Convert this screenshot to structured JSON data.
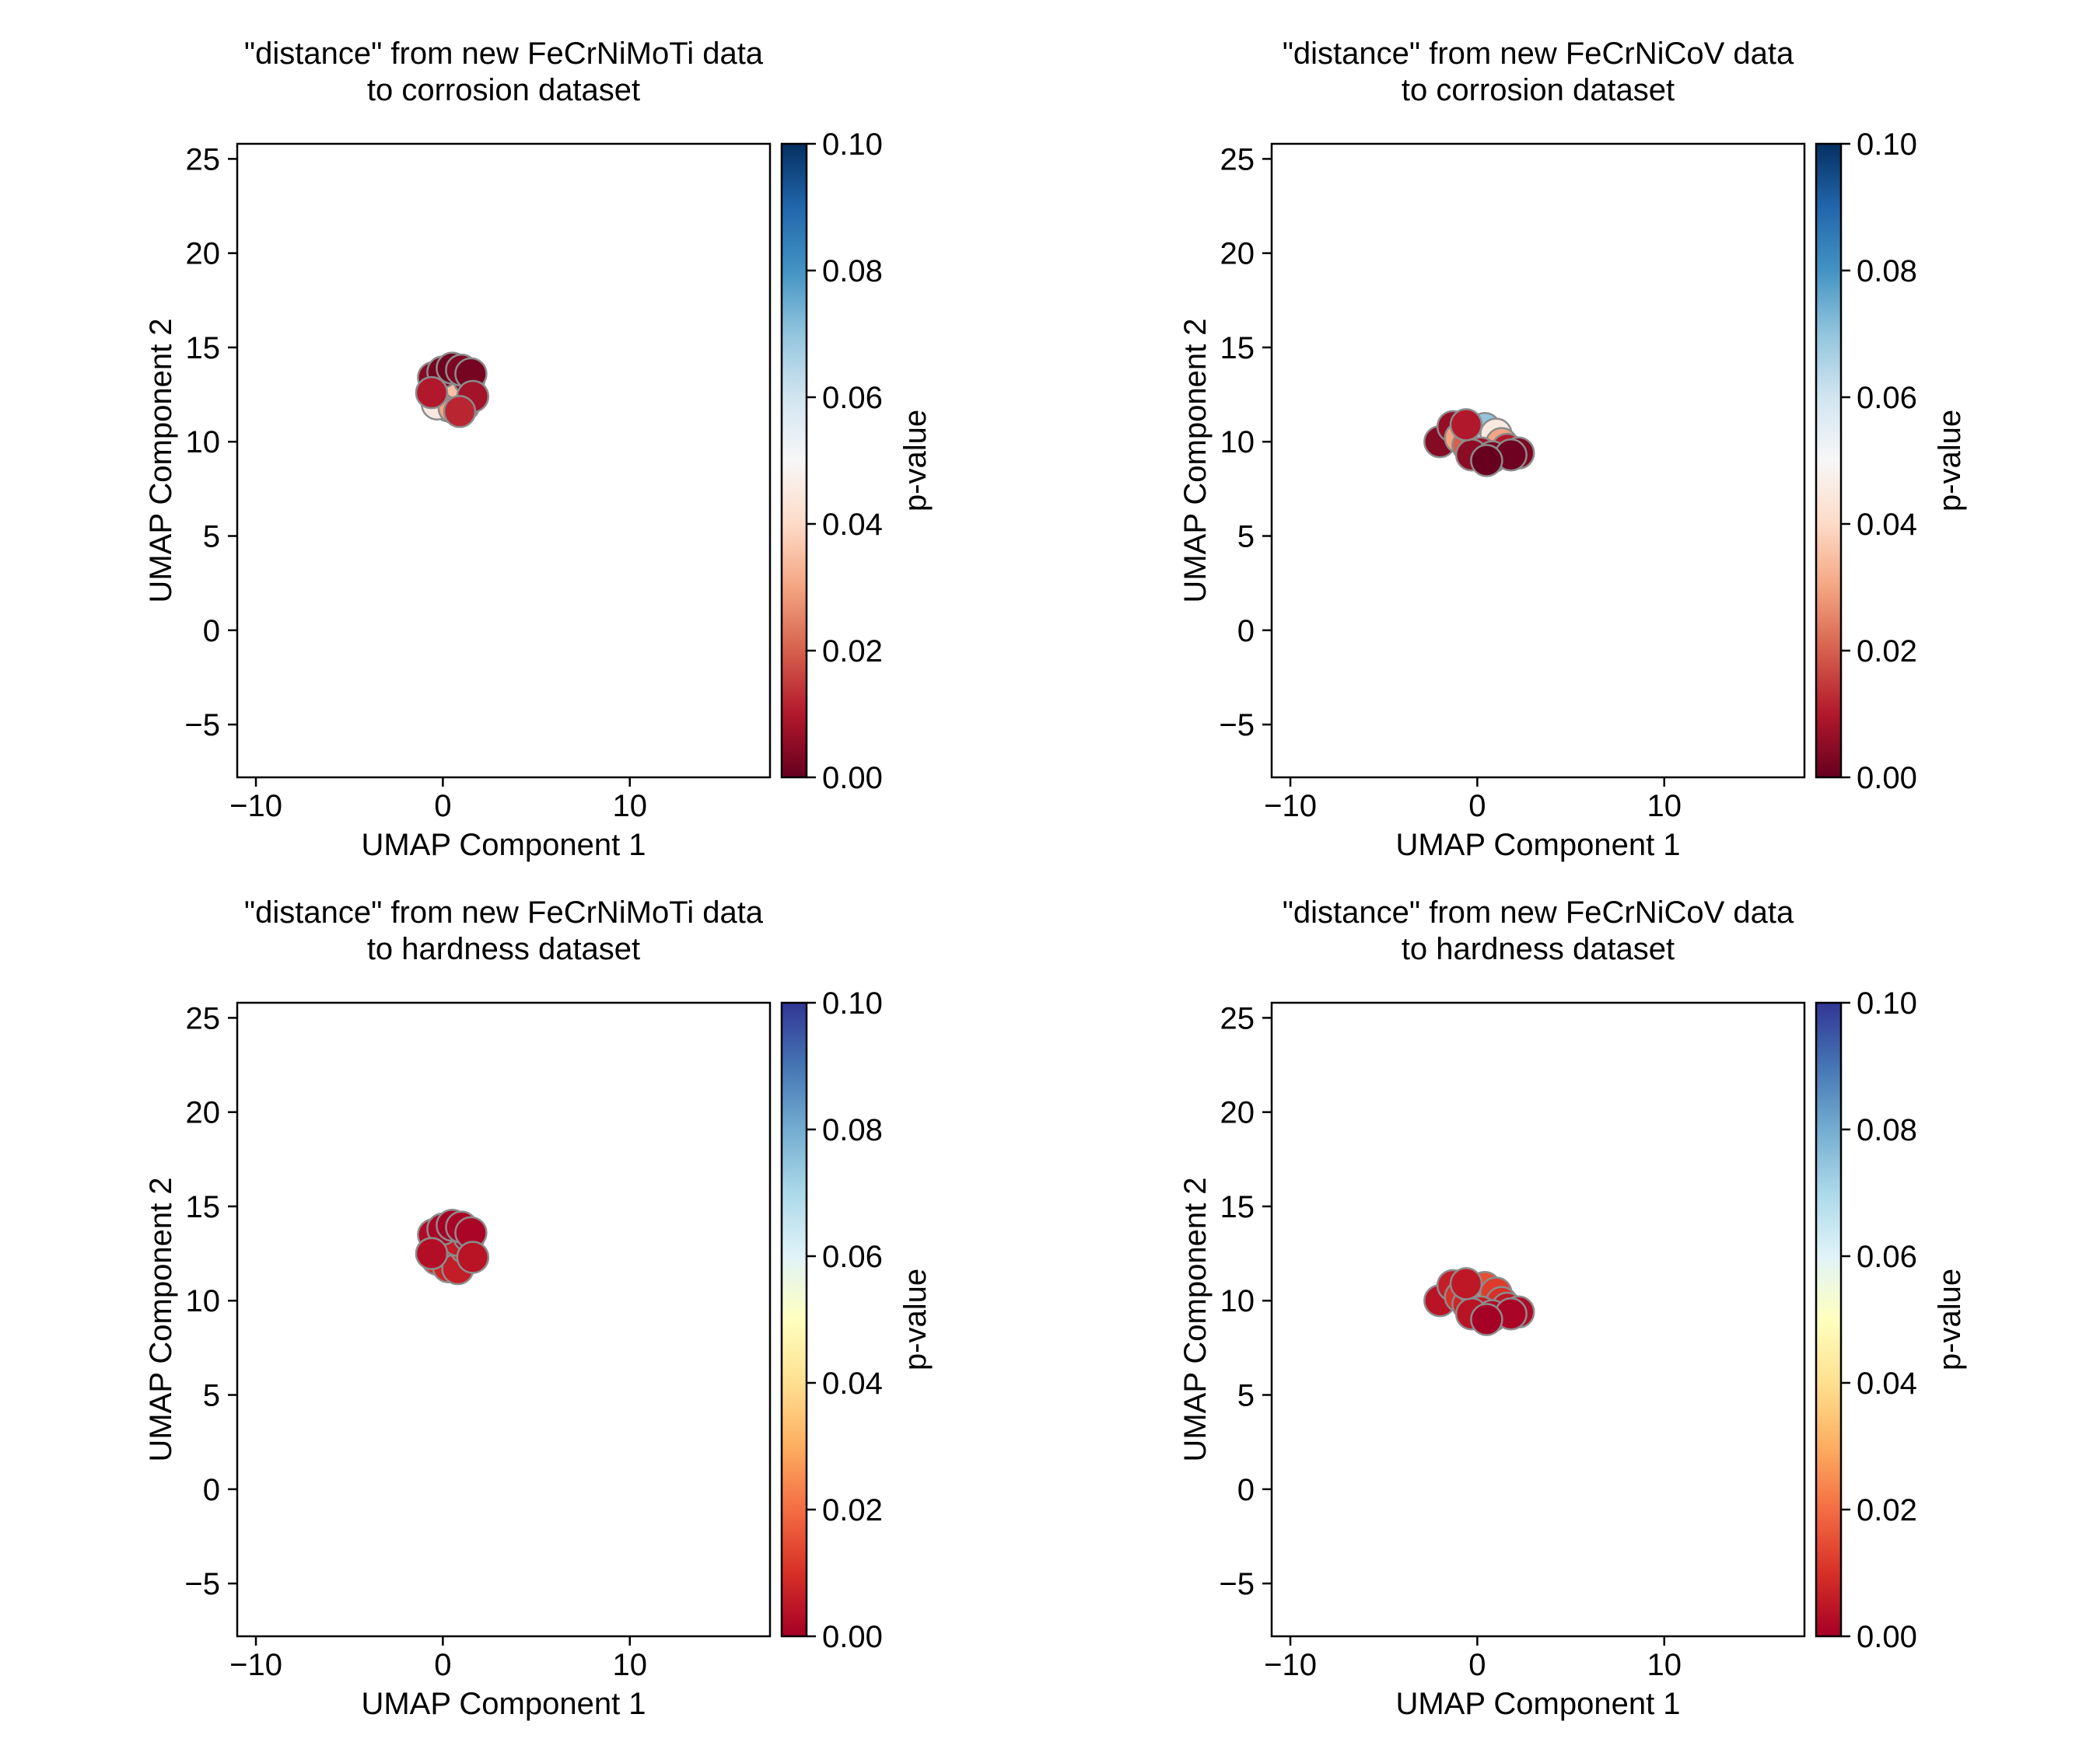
{
  "chart_data": [
    {
      "type": "scatter",
      "title": "\"distance\" from new FeCrNiMoTi data",
      "subtitle": "to corrosion dataset",
      "xlabel": "UMAP Component 1",
      "ylabel": "UMAP Component 2",
      "xlim": [
        -11,
        17.5
      ],
      "ylim": [
        -7.8,
        25.8
      ],
      "xticks": [
        -10,
        0,
        10
      ],
      "yticks": [
        -5,
        0,
        5,
        10,
        15,
        20,
        25
      ],
      "colorbar": {
        "label": "p-value",
        "range": [
          0.0,
          0.1
        ],
        "ticks": [
          "0.00",
          "0.02",
          "0.04",
          "0.06",
          "0.08",
          "0.10"
        ],
        "colormap": "RdBu"
      },
      "marker_edge_color": "#8c8c8c",
      "points": [
        {
          "x": -0.2,
          "y": 12.4,
          "v": 0.065
        },
        {
          "x": 0.1,
          "y": 12.7,
          "v": 0.09
        },
        {
          "x": 0.4,
          "y": 12.3,
          "v": 0.08
        },
        {
          "x": 0.7,
          "y": 12.6,
          "v": 0.07
        },
        {
          "x": 1.0,
          "y": 12.2,
          "v": 0.05
        },
        {
          "x": 0.3,
          "y": 11.9,
          "v": 0.06
        },
        {
          "x": -0.3,
          "y": 12.0,
          "v": 0.045
        },
        {
          "x": 0.6,
          "y": 11.8,
          "v": 0.03
        },
        {
          "x": 1.1,
          "y": 11.9,
          "v": 0.015
        },
        {
          "x": 1.3,
          "y": 12.7,
          "v": 0.02
        },
        {
          "x": -0.4,
          "y": 12.8,
          "v": 0.03
        },
        {
          "x": 0.2,
          "y": 13.1,
          "v": 0.025
        },
        {
          "x": 0.8,
          "y": 13.1,
          "v": 0.035
        },
        {
          "x": 1.4,
          "y": 13.3,
          "v": 0.005
        },
        {
          "x": -0.5,
          "y": 13.4,
          "v": 0.004
        },
        {
          "x": 0.0,
          "y": 13.7,
          "v": 0.002
        },
        {
          "x": 0.5,
          "y": 13.9,
          "v": 0.001
        },
        {
          "x": 1.0,
          "y": 13.8,
          "v": 0.003
        },
        {
          "x": 1.5,
          "y": 13.6,
          "v": 0.002
        },
        {
          "x": -0.6,
          "y": 12.6,
          "v": 0.01
        },
        {
          "x": 1.6,
          "y": 12.4,
          "v": 0.008
        },
        {
          "x": 0.9,
          "y": 11.6,
          "v": 0.012
        }
      ]
    },
    {
      "type": "scatter",
      "title": "\"distance\" from new FeCrNiCoV data",
      "subtitle": "to corrosion dataset",
      "xlabel": "UMAP Component 1",
      "ylabel": "UMAP Component 2",
      "xlim": [
        -11,
        17.5
      ],
      "ylim": [
        -7.8,
        25.8
      ],
      "xticks": [
        -10,
        0,
        10
      ],
      "yticks": [
        -5,
        0,
        5,
        10,
        15,
        20,
        25
      ],
      "colorbar": {
        "label": "p-value",
        "range": [
          0.0,
          0.1
        ],
        "ticks": [
          "0.00",
          "0.02",
          "0.04",
          "0.06",
          "0.08",
          "0.10"
        ],
        "colormap": "RdBu"
      },
      "marker_edge_color": "#8c8c8c",
      "points": [
        {
          "x": -2.0,
          "y": 10.0,
          "v": 0.004
        },
        {
          "x": -1.3,
          "y": 10.8,
          "v": 0.006
        },
        {
          "x": -0.9,
          "y": 10.2,
          "v": 0.03
        },
        {
          "x": -0.5,
          "y": 9.8,
          "v": 0.02
        },
        {
          "x": -0.2,
          "y": 10.6,
          "v": 0.05
        },
        {
          "x": 0.1,
          "y": 10.3,
          "v": 0.085
        },
        {
          "x": 0.4,
          "y": 10.7,
          "v": 0.07
        },
        {
          "x": 0.7,
          "y": 10.1,
          "v": 0.06
        },
        {
          "x": 1.0,
          "y": 10.4,
          "v": 0.045
        },
        {
          "x": 1.3,
          "y": 9.9,
          "v": 0.03
        },
        {
          "x": 1.6,
          "y": 9.6,
          "v": 0.01
        },
        {
          "x": 2.2,
          "y": 9.4,
          "v": 0.003
        },
        {
          "x": 0.2,
          "y": 9.4,
          "v": 0.008
        },
        {
          "x": -0.3,
          "y": 9.3,
          "v": 0.005
        },
        {
          "x": 0.8,
          "y": 9.2,
          "v": 0.002
        },
        {
          "x": 1.8,
          "y": 9.3,
          "v": 0.001
        },
        {
          "x": 0.5,
          "y": 9.0,
          "v": 0.0
        },
        {
          "x": -0.6,
          "y": 10.9,
          "v": 0.01
        }
      ]
    },
    {
      "type": "scatter",
      "title": "\"distance\" from new FeCrNiMoTi data",
      "subtitle": "to hardness dataset",
      "xlabel": "UMAP Component 1",
      "ylabel": "UMAP Component 2",
      "xlim": [
        -11,
        17.5
      ],
      "ylim": [
        -7.8,
        25.8
      ],
      "xticks": [
        -10,
        0,
        10
      ],
      "yticks": [
        -5,
        0,
        5,
        10,
        15,
        20,
        25
      ],
      "colorbar": {
        "label": "p-value",
        "range": [
          0.0,
          0.1
        ],
        "ticks": [
          "0.00",
          "0.02",
          "0.04",
          "0.06",
          "0.08",
          "0.10"
        ],
        "colormap": "RdYlBu"
      },
      "marker_edge_color": "#8c8c8c",
      "points": [
        {
          "x": -0.3,
          "y": 12.2,
          "v": 0.01
        },
        {
          "x": 0.1,
          "y": 12.5,
          "v": 0.015
        },
        {
          "x": 0.4,
          "y": 12.1,
          "v": 0.02
        },
        {
          "x": 0.7,
          "y": 12.6,
          "v": 0.025
        },
        {
          "x": 1.0,
          "y": 12.2,
          "v": 0.012
        },
        {
          "x": 0.3,
          "y": 11.8,
          "v": 0.008
        },
        {
          "x": 0.8,
          "y": 11.7,
          "v": 0.006
        },
        {
          "x": 1.2,
          "y": 12.8,
          "v": 0.009
        },
        {
          "x": -0.4,
          "y": 12.9,
          "v": 0.004
        },
        {
          "x": 0.2,
          "y": 13.2,
          "v": 0.005
        },
        {
          "x": 0.8,
          "y": 13.2,
          "v": 0.006
        },
        {
          "x": 1.4,
          "y": 13.4,
          "v": 0.002
        },
        {
          "x": -0.5,
          "y": 13.5,
          "v": 0.002
        },
        {
          "x": 0.0,
          "y": 13.8,
          "v": 0.001
        },
        {
          "x": 0.5,
          "y": 14.0,
          "v": 0.0
        },
        {
          "x": 1.0,
          "y": 13.9,
          "v": 0.001
        },
        {
          "x": 1.5,
          "y": 13.6,
          "v": 0.001
        },
        {
          "x": -0.6,
          "y": 12.5,
          "v": 0.003
        },
        {
          "x": 1.6,
          "y": 12.3,
          "v": 0.004
        }
      ]
    },
    {
      "type": "scatter",
      "title": "\"distance\" from new FeCrNiCoV data",
      "subtitle": "to hardness dataset",
      "xlabel": "UMAP Component 1",
      "ylabel": "UMAP Component 2",
      "xlim": [
        -11,
        17.5
      ],
      "ylim": [
        -7.8,
        25.8
      ],
      "xticks": [
        -10,
        0,
        10
      ],
      "yticks": [
        -5,
        0,
        5,
        10,
        15,
        20,
        25
      ],
      "colorbar": {
        "label": "p-value",
        "range": [
          0.0,
          0.1
        ],
        "ticks": [
          "0.00",
          "0.02",
          "0.04",
          "0.06",
          "0.08",
          "0.10"
        ],
        "colormap": "RdYlBu"
      },
      "marker_edge_color": "#8c8c8c",
      "points": [
        {
          "x": -2.0,
          "y": 10.0,
          "v": 0.004
        },
        {
          "x": -1.3,
          "y": 10.8,
          "v": 0.006
        },
        {
          "x": -0.9,
          "y": 10.2,
          "v": 0.01
        },
        {
          "x": -0.5,
          "y": 9.8,
          "v": 0.008
        },
        {
          "x": -0.2,
          "y": 10.6,
          "v": 0.012
        },
        {
          "x": 0.1,
          "y": 10.3,
          "v": 0.02
        },
        {
          "x": 0.4,
          "y": 10.7,
          "v": 0.015
        },
        {
          "x": 0.7,
          "y": 10.1,
          "v": 0.025
        },
        {
          "x": 1.0,
          "y": 10.4,
          "v": 0.012
        },
        {
          "x": 1.3,
          "y": 9.9,
          "v": 0.01
        },
        {
          "x": 1.6,
          "y": 9.6,
          "v": 0.005
        },
        {
          "x": 2.2,
          "y": 9.4,
          "v": 0.002
        },
        {
          "x": 0.2,
          "y": 9.4,
          "v": 0.006
        },
        {
          "x": -0.3,
          "y": 9.3,
          "v": 0.004
        },
        {
          "x": 0.8,
          "y": 9.2,
          "v": 0.002
        },
        {
          "x": 1.8,
          "y": 9.3,
          "v": 0.001
        },
        {
          "x": 0.5,
          "y": 9.0,
          "v": 0.0
        },
        {
          "x": -0.6,
          "y": 10.9,
          "v": 0.005
        }
      ]
    }
  ]
}
